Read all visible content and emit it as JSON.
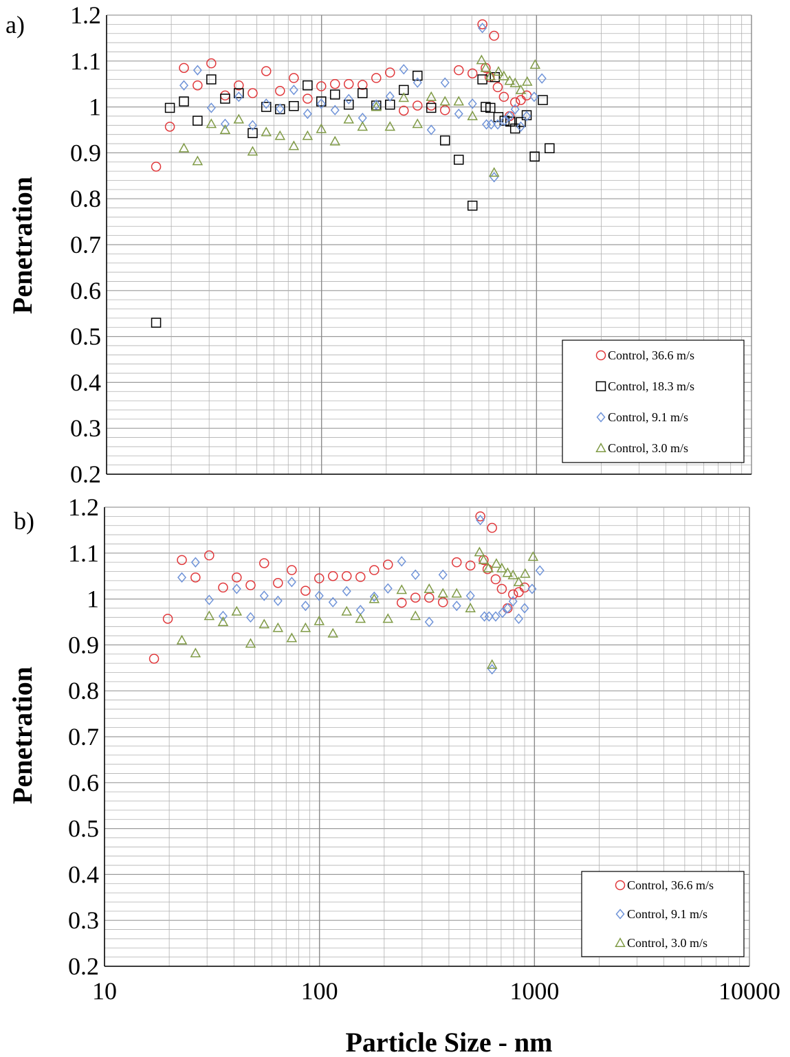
{
  "figure": {
    "panel_a_label": "a)",
    "panel_b_label": "b)",
    "xlabel": "Particle Size - nm",
    "ylabel": "Penetration"
  },
  "colors": {
    "red": "#e0373a",
    "black": "#000000",
    "blue": "#6f93d8",
    "green": "#7f9a45",
    "grid": "#b0b0b0"
  },
  "chart_data": [
    {
      "panel": "a)",
      "type": "scatter",
      "xscale": "log",
      "xlim": [
        10,
        10000
      ],
      "ylim": [
        0.2,
        1.2
      ],
      "xticks": [
        "10",
        "100",
        "1000",
        "10000"
      ],
      "yticks": [
        "0.2",
        "0.3",
        "0.4",
        "0.5",
        "0.6",
        "0.7",
        "0.8",
        "0.9",
        "1",
        "1.1",
        "1.2"
      ],
      "xlabel": "",
      "ylabel": "Penetration",
      "grid": true,
      "legend_position": "bottom-right",
      "series": [
        {
          "name": "Control, 36.6 m/s",
          "marker": "circle",
          "color": "#e0373a",
          "points": [
            [
              17,
              0.87
            ],
            [
              19.7,
              0.957
            ],
            [
              22.9,
              1.085
            ],
            [
              26.5,
              1.047
            ],
            [
              30.7,
              1.095
            ],
            [
              35.6,
              1.025
            ],
            [
              41.2,
              1.047
            ],
            [
              47.8,
              1.03
            ],
            [
              55.3,
              1.078
            ],
            [
              64.1,
              1.035
            ],
            [
              74.3,
              1.063
            ],
            [
              86.1,
              1.018
            ],
            [
              99.7,
              1.045
            ],
            [
              115.5,
              1.05
            ],
            [
              133.8,
              1.05
            ],
            [
              155.1,
              1.048
            ],
            [
              179.7,
              1.063
            ],
            [
              208.2,
              1.075
            ],
            [
              241.2,
              0.992
            ],
            [
              279.5,
              1.003
            ],
            [
              323.8,
              1.003
            ],
            [
              375.2,
              0.993
            ],
            [
              434.7,
              1.08
            ],
            [
              503.6,
              1.073
            ],
            [
              560,
              1.18
            ],
            [
              580,
              1.085
            ],
            [
              605,
              1.065
            ],
            [
              635,
              1.155
            ],
            [
              660,
              1.043
            ],
            [
              705,
              1.022
            ],
            [
              750,
              0.98
            ],
            [
              795,
              1.01
            ],
            [
              845,
              1.015
            ],
            [
              900,
              1.025
            ]
          ]
        },
        {
          "name": "Control, 18.3 m/s",
          "marker": "square",
          "color": "#000000",
          "points": [
            [
              17,
              0.53
            ],
            [
              19.7,
              0.998
            ],
            [
              22.9,
              1.012
            ],
            [
              26.5,
              0.97
            ],
            [
              30.7,
              1.06
            ],
            [
              35.6,
              1.018
            ],
            [
              41.2,
              1.03
            ],
            [
              47.8,
              0.943
            ],
            [
              55.3,
              1.0
            ],
            [
              64.1,
              0.995
            ],
            [
              74.3,
              1.002
            ],
            [
              86.1,
              1.047
            ],
            [
              99.7,
              1.012
            ],
            [
              115.5,
              1.027
            ],
            [
              133.8,
              1.005
            ],
            [
              155.1,
              1.03
            ],
            [
              179.7,
              1.003
            ],
            [
              208.2,
              1.005
            ],
            [
              241.2,
              1.037
            ],
            [
              279.5,
              1.068
            ],
            [
              323.8,
              0.998
            ],
            [
              375.2,
              0.927
            ],
            [
              434.7,
              0.885
            ],
            [
              503.6,
              0.785
            ],
            [
              560,
              1.06
            ],
            [
              580,
              1.0
            ],
            [
              610,
              0.998
            ],
            [
              640,
              1.065
            ],
            [
              665,
              0.978
            ],
            [
              710,
              0.97
            ],
            [
              755,
              0.968
            ],
            [
              795,
              0.953
            ],
            [
              845,
              0.967
            ],
            [
              900,
              0.982
            ],
            [
              980,
              0.892
            ],
            [
              1070,
              1.015
            ],
            [
              1150,
              0.91
            ]
          ]
        },
        {
          "name": "Control, 9.1 m/s",
          "marker": "diamond",
          "color": "#6f93d8",
          "points": [
            [
              22.9,
              1.047
            ],
            [
              26.5,
              1.08
            ],
            [
              30.7,
              0.998
            ],
            [
              35.6,
              0.963
            ],
            [
              41.2,
              1.022
            ],
            [
              47.8,
              0.96
            ],
            [
              55.3,
              1.007
            ],
            [
              64.1,
              0.996
            ],
            [
              74.3,
              1.037
            ],
            [
              86.1,
              0.985
            ],
            [
              99.7,
              1.007
            ],
            [
              115.5,
              0.993
            ],
            [
              133.8,
              1.017
            ],
            [
              155.1,
              0.976
            ],
            [
              179.7,
              1.005
            ],
            [
              208.2,
              1.023
            ],
            [
              241.2,
              1.082
            ],
            [
              279.5,
              1.053
            ],
            [
              323.8,
              0.95
            ],
            [
              375.2,
              1.053
            ],
            [
              434.7,
              0.985
            ],
            [
              503.6,
              1.007
            ],
            [
              560,
              1.172
            ],
            [
              585,
              0.962
            ],
            [
              615,
              0.962
            ],
            [
              635,
              0.847
            ],
            [
              660,
              0.962
            ],
            [
              710,
              0.97
            ],
            [
              750,
              0.98
            ],
            [
              795,
              0.995
            ],
            [
              845,
              0.957
            ],
            [
              900,
              0.98
            ],
            [
              975,
              1.022
            ],
            [
              1060,
              1.062
            ]
          ]
        },
        {
          "name": "Control, 3.0 m/s",
          "marker": "triangle",
          "color": "#7f9a45",
          "points": [
            [
              22.9,
              0.91
            ],
            [
              26.5,
              0.882
            ],
            [
              30.7,
              0.963
            ],
            [
              35.6,
              0.95
            ],
            [
              41.2,
              0.973
            ],
            [
              47.8,
              0.903
            ],
            [
              55.3,
              0.945
            ],
            [
              64.1,
              0.937
            ],
            [
              74.3,
              0.915
            ],
            [
              86.1,
              0.937
            ],
            [
              99.7,
              0.952
            ],
            [
              115.5,
              0.925
            ],
            [
              133.8,
              0.973
            ],
            [
              155.1,
              0.957
            ],
            [
              179.7,
              1.0
            ],
            [
              208.2,
              0.957
            ],
            [
              241.2,
              1.02
            ],
            [
              279.5,
              0.963
            ],
            [
              323.8,
              1.022
            ],
            [
              375.2,
              1.012
            ],
            [
              434.7,
              1.012
            ],
            [
              503.6,
              0.98
            ],
            [
              555,
              1.102
            ],
            [
              580,
              1.085
            ],
            [
              610,
              1.067
            ],
            [
              635,
              0.857
            ],
            [
              665,
              1.077
            ],
            [
              705,
              1.067
            ],
            [
              750,
              1.057
            ],
            [
              795,
              1.052
            ],
            [
              845,
              1.037
            ],
            [
              905,
              1.055
            ],
            [
              985,
              1.092
            ]
          ]
        }
      ]
    },
    {
      "panel": "b)",
      "type": "scatter",
      "xscale": "log",
      "xlim": [
        10,
        10000
      ],
      "ylim": [
        0.2,
        1.2
      ],
      "xticks": [
        "10",
        "100",
        "1000",
        "10000"
      ],
      "yticks": [
        "0.2",
        "0.3",
        "0.4",
        "0.5",
        "0.6",
        "0.7",
        "0.8",
        "0.9",
        "1",
        "1.1",
        "1.2"
      ],
      "xlabel": "Particle Size - nm",
      "ylabel": "Penetration",
      "grid": true,
      "legend_position": "bottom-right",
      "series": [
        {
          "name": "Control, 36.6 m/s",
          "marker": "circle",
          "color": "#e0373a",
          "points": [
            [
              17,
              0.87
            ],
            [
              19.7,
              0.957
            ],
            [
              22.9,
              1.085
            ],
            [
              26.5,
              1.047
            ],
            [
              30.7,
              1.095
            ],
            [
              35.6,
              1.025
            ],
            [
              41.2,
              1.047
            ],
            [
              47.8,
              1.03
            ],
            [
              55.3,
              1.078
            ],
            [
              64.1,
              1.035
            ],
            [
              74.3,
              1.063
            ],
            [
              86.1,
              1.018
            ],
            [
              99.7,
              1.045
            ],
            [
              115.5,
              1.05
            ],
            [
              133.8,
              1.05
            ],
            [
              155.1,
              1.048
            ],
            [
              179.7,
              1.063
            ],
            [
              208.2,
              1.075
            ],
            [
              241.2,
              0.992
            ],
            [
              279.5,
              1.003
            ],
            [
              323.8,
              1.003
            ],
            [
              375.2,
              0.993
            ],
            [
              434.7,
              1.08
            ],
            [
              503.6,
              1.073
            ],
            [
              560,
              1.18
            ],
            [
              580,
              1.085
            ],
            [
              605,
              1.065
            ],
            [
              635,
              1.155
            ],
            [
              660,
              1.043
            ],
            [
              705,
              1.022
            ],
            [
              750,
              0.98
            ],
            [
              795,
              1.01
            ],
            [
              845,
              1.015
            ],
            [
              900,
              1.025
            ]
          ]
        },
        {
          "name": "Control, 9.1 m/s",
          "marker": "diamond",
          "color": "#6f93d8",
          "points": [
            [
              22.9,
              1.047
            ],
            [
              26.5,
              1.08
            ],
            [
              30.7,
              0.998
            ],
            [
              35.6,
              0.963
            ],
            [
              41.2,
              1.022
            ],
            [
              47.8,
              0.96
            ],
            [
              55.3,
              1.007
            ],
            [
              64.1,
              0.996
            ],
            [
              74.3,
              1.037
            ],
            [
              86.1,
              0.985
            ],
            [
              99.7,
              1.007
            ],
            [
              115.5,
              0.993
            ],
            [
              133.8,
              1.017
            ],
            [
              155.1,
              0.976
            ],
            [
              179.7,
              1.005
            ],
            [
              208.2,
              1.023
            ],
            [
              241.2,
              1.082
            ],
            [
              279.5,
              1.053
            ],
            [
              323.8,
              0.95
            ],
            [
              375.2,
              1.053
            ],
            [
              434.7,
              0.985
            ],
            [
              503.6,
              1.007
            ],
            [
              560,
              1.172
            ],
            [
              585,
              0.962
            ],
            [
              615,
              0.962
            ],
            [
              635,
              0.847
            ],
            [
              660,
              0.962
            ],
            [
              710,
              0.97
            ],
            [
              750,
              0.98
            ],
            [
              795,
              0.995
            ],
            [
              845,
              0.957
            ],
            [
              900,
              0.98
            ],
            [
              975,
              1.022
            ],
            [
              1060,
              1.062
            ]
          ]
        },
        {
          "name": "Control, 3.0 m/s",
          "marker": "triangle",
          "color": "#7f9a45",
          "points": [
            [
              22.9,
              0.91
            ],
            [
              26.5,
              0.882
            ],
            [
              30.7,
              0.963
            ],
            [
              35.6,
              0.95
            ],
            [
              41.2,
              0.973
            ],
            [
              47.8,
              0.903
            ],
            [
              55.3,
              0.945
            ],
            [
              64.1,
              0.937
            ],
            [
              74.3,
              0.915
            ],
            [
              86.1,
              0.937
            ],
            [
              99.7,
              0.952
            ],
            [
              115.5,
              0.925
            ],
            [
              133.8,
              0.973
            ],
            [
              155.1,
              0.957
            ],
            [
              179.7,
              1.0
            ],
            [
              208.2,
              0.957
            ],
            [
              241.2,
              1.02
            ],
            [
              279.5,
              0.963
            ],
            [
              323.8,
              1.022
            ],
            [
              375.2,
              1.012
            ],
            [
              434.7,
              1.012
            ],
            [
              503.6,
              0.98
            ],
            [
              555,
              1.102
            ],
            [
              580,
              1.085
            ],
            [
              610,
              1.067
            ],
            [
              635,
              0.857
            ],
            [
              665,
              1.077
            ],
            [
              705,
              1.067
            ],
            [
              750,
              1.057
            ],
            [
              795,
              1.052
            ],
            [
              845,
              1.037
            ],
            [
              905,
              1.055
            ],
            [
              985,
              1.092
            ]
          ]
        }
      ]
    }
  ]
}
